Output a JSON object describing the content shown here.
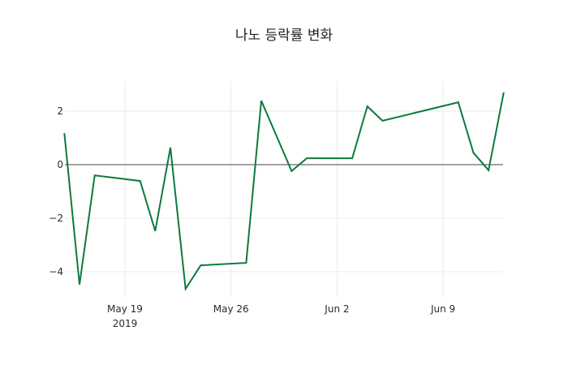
{
  "chart_data": {
    "type": "line",
    "title": "나노 등락률 변화",
    "xlabel": "",
    "ylabel": "",
    "x_tick_labels": [
      "May 19\n2019",
      "May 26",
      "Jun 2",
      "Jun 9"
    ],
    "y_tick_labels": [
      "−4",
      "−2",
      "0",
      "2"
    ],
    "ylim": [
      -4.9,
      3.1
    ],
    "grid": true,
    "legend": null,
    "series": [
      {
        "name": "등락률",
        "color": "#0b7a3e",
        "x": [
          "2019-05-15",
          "2019-05-16",
          "2019-05-17",
          "2019-05-20",
          "2019-05-21",
          "2019-05-22",
          "2019-05-23",
          "2019-05-24",
          "2019-05-27",
          "2019-05-28",
          "2019-05-30",
          "2019-05-31",
          "2019-06-03",
          "2019-06-04",
          "2019-06-05",
          "2019-06-10",
          "2019-06-11",
          "2019-06-12",
          "2019-06-13"
        ],
        "values": [
          1.18,
          -4.48,
          -0.4,
          -0.61,
          -2.48,
          0.64,
          -4.64,
          -3.76,
          -3.67,
          2.39,
          -0.24,
          0.24,
          0.24,
          2.18,
          1.64,
          2.33,
          0.45,
          -0.21,
          2.7
        ]
      }
    ]
  },
  "plot": {
    "x_ticks": [
      {
        "date": "2019-05-19",
        "label": "May 19",
        "sub": "2019"
      },
      {
        "date": "2019-05-26",
        "label": "May 26",
        "sub": ""
      },
      {
        "date": "2019-06-02",
        "label": "Jun 2",
        "sub": ""
      },
      {
        "date": "2019-06-09",
        "label": "Jun 9",
        "sub": ""
      }
    ],
    "y_ticks": [
      {
        "value": 2,
        "label": "2"
      },
      {
        "value": 0,
        "label": "0"
      },
      {
        "value": -2,
        "label": "−2"
      },
      {
        "value": -4,
        "label": "−4"
      }
    ]
  }
}
